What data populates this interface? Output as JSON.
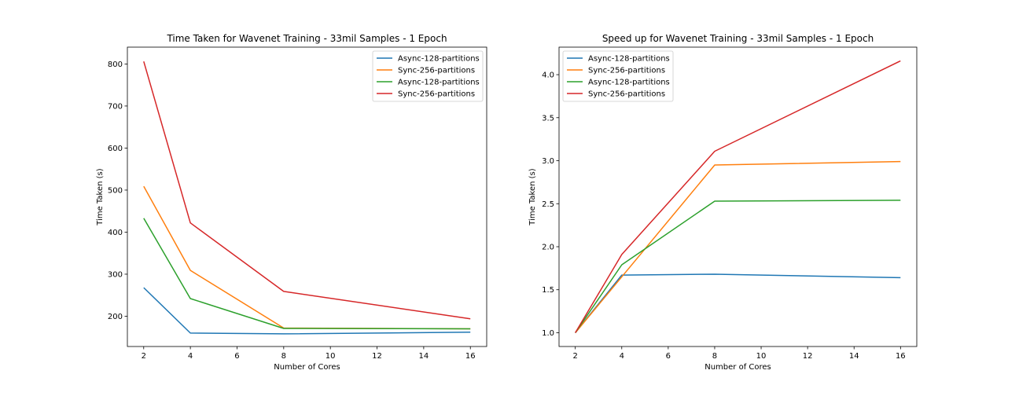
{
  "chart_data": [
    {
      "type": "line",
      "title": "Time Taken for Wavenet Training - 33mil Samples - 1 Epoch",
      "xlabel": "Number of Cores",
      "ylabel": "Time Taken (s)",
      "x": [
        2,
        4,
        8,
        16
      ],
      "xlim": [
        1.3,
        16.7
      ],
      "ylim": [
        128,
        840
      ],
      "xticks": [
        2,
        4,
        6,
        8,
        10,
        12,
        14,
        16
      ],
      "yticks": [
        200,
        300,
        400,
        500,
        600,
        700,
        800
      ],
      "legend_position": "top-right",
      "grid": false,
      "series": [
        {
          "name": "Async-128-partitions",
          "color": "#1f77b4",
          "values": [
            268,
            160,
            158,
            162
          ]
        },
        {
          "name": "Sync-256-partitions",
          "color": "#ff7f0e",
          "values": [
            509,
            309,
            172,
            170
          ]
        },
        {
          "name": "Async-128-partitions",
          "color": "#2ca02c",
          "values": [
            433,
            242,
            171,
            170
          ]
        },
        {
          "name": "Sync-256-partitions",
          "color": "#d62728",
          "values": [
            806,
            422,
            259,
            194
          ]
        }
      ]
    },
    {
      "type": "line",
      "title": "Speed up for Wavenet Training - 33mil Samples - 1 Epoch",
      "xlabel": "Number of Cores",
      "ylabel": "Time Taken (s)",
      "x": [
        2,
        4,
        8,
        16
      ],
      "xlim": [
        1.3,
        16.7
      ],
      "ylim": [
        0.84,
        4.32
      ],
      "xticks": [
        2,
        4,
        6,
        8,
        10,
        12,
        14,
        16
      ],
      "yticks": [
        1.0,
        1.5,
        2.0,
        2.5,
        3.0,
        3.5,
        4.0
      ],
      "legend_position": "top-left",
      "grid": false,
      "series": [
        {
          "name": "Async-128-partitions",
          "color": "#1f77b4",
          "values": [
            1.0,
            1.67,
            1.68,
            1.64
          ]
        },
        {
          "name": "Sync-256-partitions",
          "color": "#ff7f0e",
          "values": [
            1.0,
            1.65,
            2.95,
            2.99
          ]
        },
        {
          "name": "Async-128-partitions",
          "color": "#2ca02c",
          "values": [
            1.0,
            1.79,
            2.53,
            2.54
          ]
        },
        {
          "name": "Sync-256-partitions",
          "color": "#d62728",
          "values": [
            1.0,
            1.91,
            3.11,
            4.16
          ]
        }
      ]
    }
  ]
}
